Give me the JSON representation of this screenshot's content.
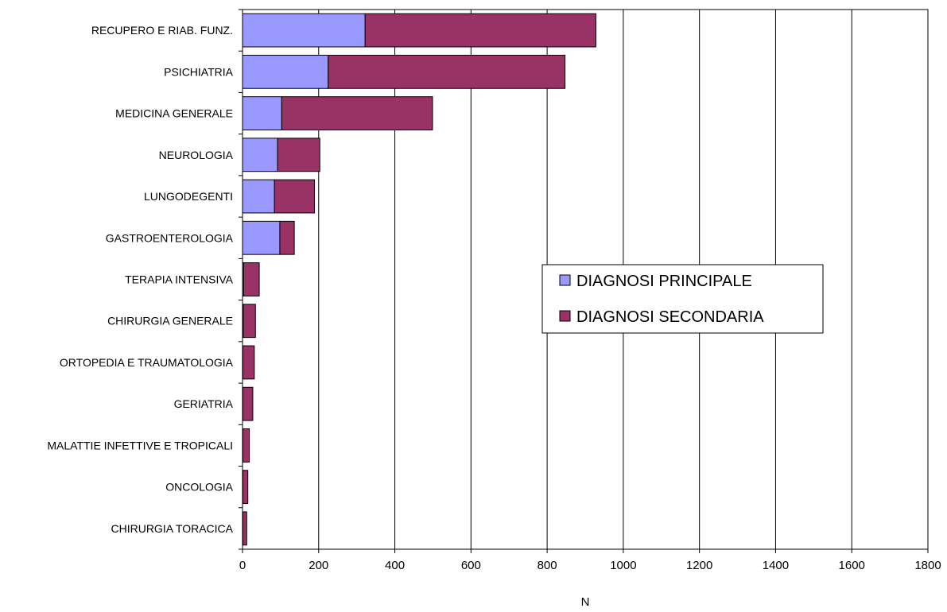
{
  "chart_data": {
    "type": "bar",
    "orientation": "horizontal",
    "stacked": true,
    "title": "",
    "xlabel": "N",
    "ylabel": "",
    "xlim": [
      0,
      1800
    ],
    "x_ticks": [
      0,
      200,
      400,
      600,
      800,
      1000,
      1200,
      1400,
      1600,
      1800
    ],
    "grid": "vertical",
    "legend_position": "center-right",
    "categories": [
      "RECUPERO E RIAB. FUNZ.",
      "PSICHIATRIA",
      "MEDICINA GENERALE",
      "NEUROLOGIA",
      "LUNGODEGENTI",
      "GASTROENTEROLOGIA",
      "TERAPIA INTENSIVA",
      "CHIRURGIA GENERALE",
      "ORTOPEDIA E TRAUMATOLOGIA",
      "GERIATRIA",
      "MALATTIE INFETTIVE E TROPICALI",
      "ONCOLOGIA",
      "CHIRURGIA TORACICA"
    ],
    "series": [
      {
        "name": "DIAGNOSI PRINCIPALE",
        "color": "#9999FF",
        "values": [
          322,
          225,
          103,
          92,
          84,
          98,
          3,
          2,
          1,
          1,
          1,
          1,
          1
        ]
      },
      {
        "name": "DIAGNOSI SECONDARIA",
        "color": "#993366",
        "values": [
          606,
          622,
          396,
          111,
          105,
          38,
          41,
          32,
          30,
          26,
          17,
          13,
          10
        ]
      }
    ]
  }
}
